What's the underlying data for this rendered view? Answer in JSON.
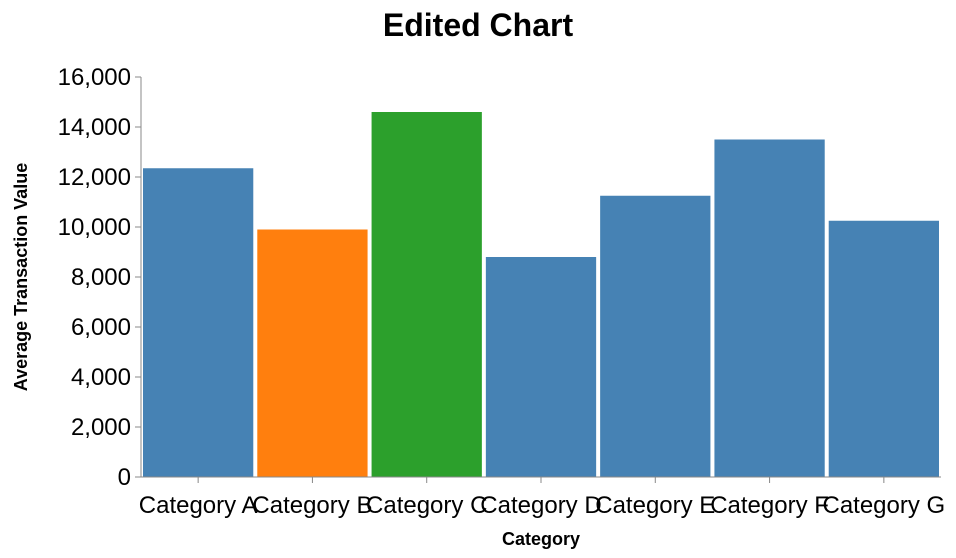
{
  "chart_data": {
    "type": "bar",
    "title": "Edited Chart",
    "xlabel": "Category",
    "ylabel": "Average Transaction Value",
    "categories": [
      "Category A",
      "Category B",
      "Category C",
      "Category D",
      "Category E",
      "Category F",
      "Category G"
    ],
    "values": [
      12350,
      9900,
      14600,
      8800,
      11250,
      13500,
      10250
    ],
    "colors": [
      "#4682b4",
      "#ff7f0e",
      "#2ca02c",
      "#4682b4",
      "#4682b4",
      "#4682b4",
      "#4682b4"
    ],
    "ylim": [
      0,
      16000
    ],
    "yticks": [
      0,
      2000,
      4000,
      6000,
      8000,
      10000,
      12000,
      14000,
      16000
    ],
    "ytick_labels": [
      "0",
      "2,000",
      "4,000",
      "6,000",
      "8,000",
      "10,000",
      "12,000",
      "14,000",
      "16,000"
    ],
    "grid": false,
    "legend": "none"
  }
}
